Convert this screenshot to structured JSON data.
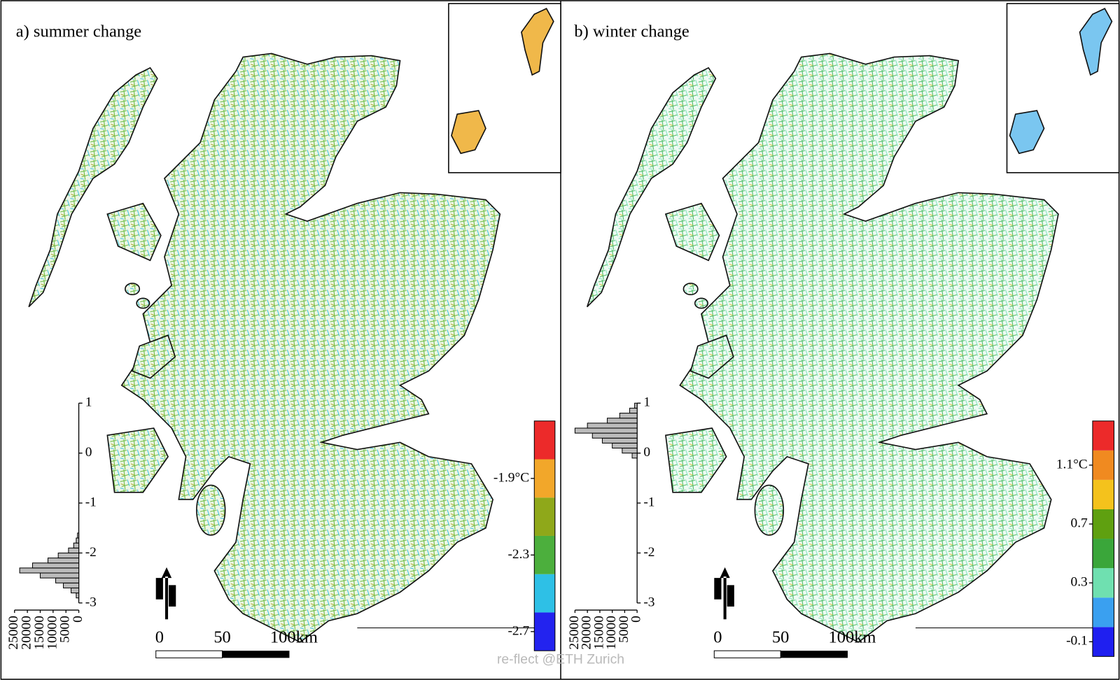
{
  "panels": [
    {
      "title": "a) summer change",
      "legend": {
        "colors": [
          "#2323ef",
          "#2ec0e6",
          "#4caf3d",
          "#8fa81a",
          "#f2a72a",
          "#ec2a2a"
        ],
        "lim": [
          -2.8,
          -1.6
        ],
        "ticks": [
          {
            "value": -1.9,
            "label": "-1.9°C"
          },
          {
            "value": -2.3,
            "label": "-2.3"
          },
          {
            "value": -2.7,
            "label": "-2.7"
          }
        ]
      },
      "histogram": {
        "bins": [
          -2.9,
          -2.8,
          -2.7,
          -2.6,
          -2.5,
          -2.4,
          -2.3,
          -2.2,
          -2.1,
          -2.0,
          -1.9,
          -1.8,
          -1.7,
          -1.6
        ],
        "counts": [
          1000,
          3000,
          6000,
          9000,
          15000,
          23000,
          18000,
          12000,
          8000,
          4000,
          2000,
          1000,
          500
        ],
        "ylim": [
          -3,
          1
        ],
        "yticks": [
          1,
          0,
          -1,
          -2,
          -3
        ],
        "xlim": [
          0,
          25000
        ],
        "xticks": [
          25000,
          20000,
          15000,
          10000,
          5000,
          0
        ]
      },
      "scale_bar": [
        "0",
        "50",
        "100km"
      ]
    },
    {
      "title": "b) winter change",
      "legend": {
        "colors": [
          "#1f1ff0",
          "#3aa0f0",
          "#6fe0b0",
          "#3aa63a",
          "#5fa010",
          "#f4c21c",
          "#f08a20",
          "#ec2a2a"
        ],
        "lim": [
          -0.2,
          1.4
        ],
        "ticks": [
          {
            "value": 1.1,
            "label": "1.1°C"
          },
          {
            "value": 0.7,
            "label": "0.7"
          },
          {
            "value": 0.3,
            "label": "0.3"
          },
          {
            "value": -0.1,
            "label": "-0.1"
          }
        ]
      },
      "histogram": {
        "bins": [
          -0.1,
          0.0,
          0.1,
          0.2,
          0.3,
          0.4,
          0.5,
          0.6,
          0.7,
          0.8,
          0.9,
          1.0
        ],
        "counts": [
          2000,
          6000,
          10000,
          14000,
          18000,
          25000,
          20000,
          12000,
          7000,
          3000,
          1000
        ],
        "ylim": [
          -3,
          1
        ],
        "yticks": [
          1,
          0,
          -1,
          -2,
          -3
        ],
        "xlim": [
          0,
          25000
        ],
        "xticks": [
          25000,
          20000,
          15000,
          10000,
          5000,
          0
        ]
      },
      "scale_bar": [
        "0",
        "50",
        "100km"
      ]
    }
  ],
  "watermark": "re-flect @ETH Zurich"
}
